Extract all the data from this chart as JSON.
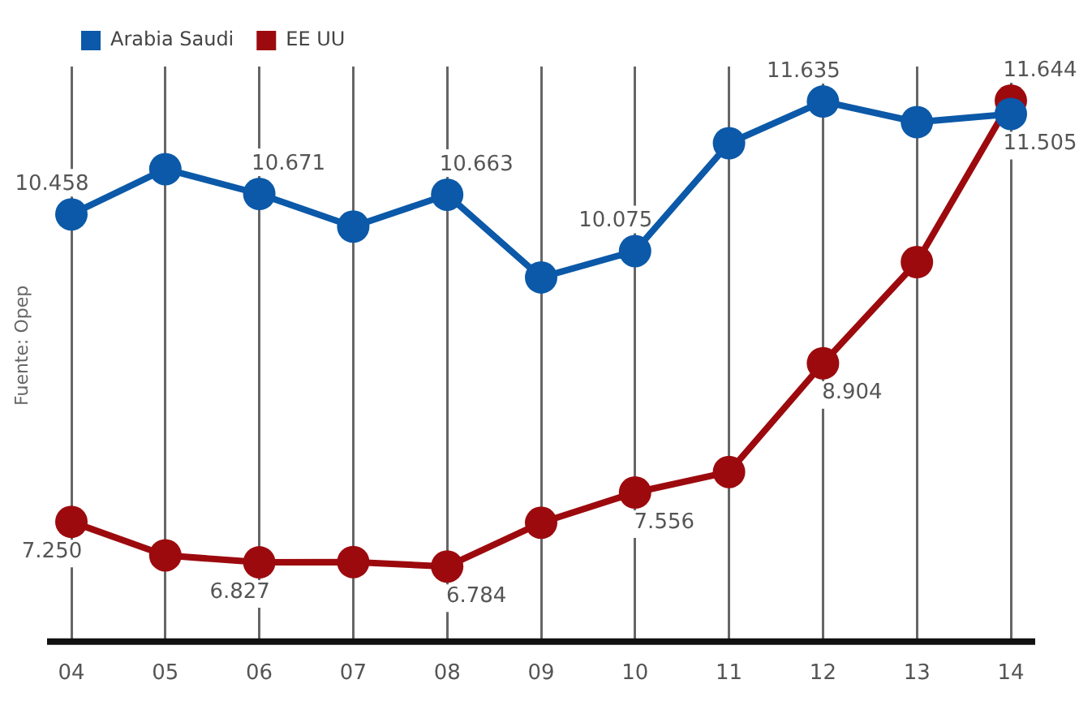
{
  "chart_data": {
    "type": "line",
    "categories": [
      "04",
      "05",
      "06",
      "07",
      "08",
      "09",
      "10",
      "11",
      "12",
      "13",
      "14"
    ],
    "series": [
      {
        "name": "Arabia Saudi",
        "color": "#0b59a8",
        "values": [
          10.458,
          10.93,
          10.671,
          10.33,
          10.663,
          9.8,
          10.075,
          11.2,
          11.635,
          11.42,
          11.505
        ],
        "value_labels": [
          "10.458",
          null,
          "10.671",
          null,
          "10.663",
          null,
          "10.075",
          null,
          "11.635",
          null,
          "11.505"
        ]
      },
      {
        "name": "EE UU",
        "color": "#9c0a0e",
        "values": [
          7.25,
          6.9,
          6.827,
          6.83,
          6.784,
          7.24,
          7.556,
          7.77,
          8.904,
          9.96,
          11.644
        ],
        "value_labels": [
          "7.250",
          null,
          "6.827",
          null,
          "6.784",
          null,
          "7.556",
          null,
          "8.904",
          null,
          "11.644"
        ]
      }
    ],
    "ylim": [
      6,
      12
    ],
    "tick_labels": "x",
    "grid": "x",
    "legend": "top left",
    "marker": "circle",
    "line_style": "solid",
    "annotations": [
      "Fuente: Opep"
    ]
  }
}
